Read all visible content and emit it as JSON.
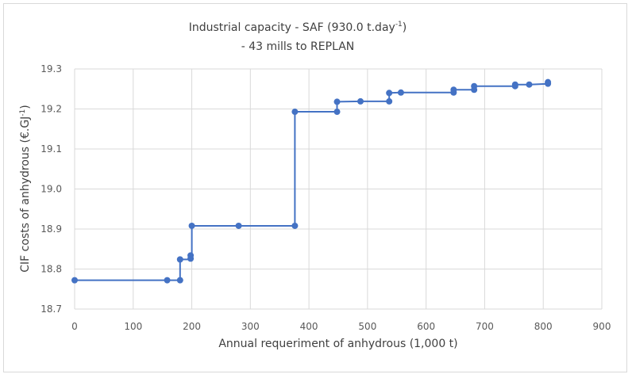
{
  "chart_data": {
    "type": "line",
    "title_line1": "Industrial capacity - SAF (930.0 t.day",
    "title_line1_sup": "-1",
    "title_line1_end": ")",
    "title_line2": "- 43 mills to REPLAN",
    "xlabel": "Annual requeriment of anhydrous (1,000 t)",
    "ylabel_main": "CIF costs of anhydrous (€.GJ",
    "ylabel_sup": "-1",
    "ylabel_end": ")",
    "xlim": [
      0,
      900
    ],
    "ylim": [
      18.7,
      19.3
    ],
    "x_ticks": [
      "0",
      "100",
      "200",
      "300",
      "400",
      "500",
      "600",
      "700",
      "800",
      "900"
    ],
    "y_ticks": [
      "18.7",
      "18.8",
      "18.9",
      "19.0",
      "19.1",
      "19.2",
      "19.3"
    ],
    "grid": true,
    "series_color": "#4472c4",
    "x": [
      0,
      158,
      158,
      180,
      180,
      180,
      180,
      198,
      198,
      198,
      198,
      200,
      200,
      280,
      376,
      376,
      448,
      448,
      488,
      537,
      537,
      557,
      647,
      647,
      682,
      682,
      752,
      752,
      776,
      808,
      808
    ],
    "y": [
      18.772,
      18.772,
      18.772,
      18.772,
      18.772,
      18.824,
      18.824,
      18.824,
      18.826,
      18.834,
      18.834,
      18.834,
      18.908,
      18.908,
      18.908,
      19.193,
      19.193,
      19.218,
      19.219,
      19.219,
      19.24,
      19.241,
      19.241,
      19.248,
      19.248,
      19.257,
      19.257,
      19.261,
      19.261,
      19.263,
      19.267
    ],
    "markers_x": [
      0,
      158,
      180,
      180,
      198,
      198,
      200,
      280,
      376,
      376,
      448,
      448,
      488,
      537,
      537,
      557,
      647,
      647,
      682,
      682,
      752,
      752,
      776,
      808,
      808
    ],
    "markers_y": [
      18.772,
      18.772,
      18.772,
      18.824,
      18.826,
      18.834,
      18.908,
      18.908,
      18.908,
      19.193,
      19.193,
      19.218,
      19.219,
      19.219,
      19.24,
      19.241,
      19.241,
      19.248,
      19.248,
      19.257,
      19.257,
      19.261,
      19.261,
      19.263,
      19.267
    ]
  }
}
